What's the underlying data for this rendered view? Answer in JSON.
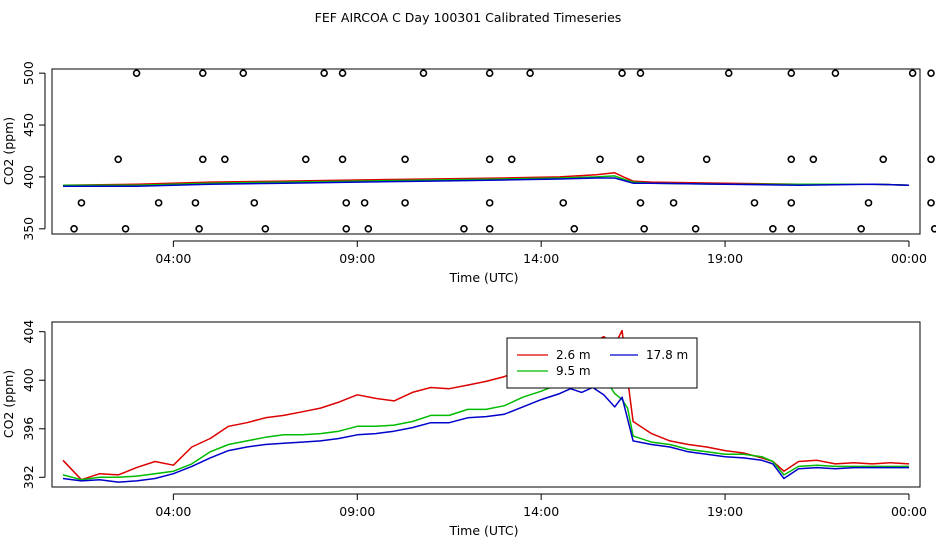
{
  "title": "FEF AIRCOA C  Day 100301  Calibrated Timeseries",
  "colors": {
    "red": "#dd0000",
    "green": "#00bb00",
    "blue": "#0000cc",
    "points": "#000000"
  },
  "chart_data": [
    {
      "type": "line",
      "xlabel": "Time (UTC)",
      "ylabel": "CO2 (ppm)",
      "xlim": [
        -0.3,
        23.3
      ],
      "ylim": [
        345,
        504
      ],
      "xticks": [
        3,
        8,
        13,
        18,
        23
      ],
      "xtick_labels": [
        "04:00",
        "09:00",
        "14:00",
        "19:00",
        "00:00"
      ],
      "yticks": [
        350,
        400,
        450,
        500
      ],
      "ytick_labels": [
        "350",
        "400",
        "450",
        "500"
      ],
      "grid": false,
      "scatter": {
        "name": "",
        "marker": "open-circle",
        "x": [
          2.0,
          3.8,
          4.9,
          7.1,
          7.6,
          9.8,
          11.6,
          12.7,
          15.2,
          15.7,
          18.1,
          19.8,
          21.0,
          23.1,
          23.6,
          1.5,
          3.8,
          4.4,
          6.6,
          7.6,
          9.3,
          11.6,
          12.2,
          14.6,
          15.7,
          17.5,
          19.8,
          20.4,
          22.3,
          23.6,
          0.3,
          1.7,
          3.7,
          5.5,
          7.7,
          8.3,
          10.9,
          11.6,
          13.9,
          15.8,
          17.2,
          19.3,
          19.8,
          21.7,
          23.7,
          0.5,
          2.6,
          3.6,
          5.2,
          7.7,
          8.2,
          9.3,
          11.6,
          13.6,
          15.7,
          16.6,
          18.8,
          19.8,
          21.9,
          23.6
        ],
        "y": [
          500,
          500,
          500,
          500,
          500,
          500,
          500,
          500,
          500,
          500,
          500,
          500,
          500,
          500,
          500,
          417,
          417,
          417,
          417,
          417,
          417,
          417,
          417,
          417,
          417,
          417,
          417,
          417,
          417,
          417,
          350,
          350,
          350,
          350,
          350,
          350,
          350,
          350,
          350,
          350,
          350,
          350,
          350,
          350,
          350,
          375,
          375,
          375,
          375,
          375,
          375,
          375,
          375,
          375,
          375,
          375,
          375,
          375,
          375,
          375
        ]
      },
      "series": [
        {
          "name": "",
          "color": "red",
          "x": [
            0,
            2,
            4,
            6,
            8,
            10,
            12,
            13.5,
            14.5,
            15,
            15.3,
            15.5,
            16,
            18,
            20,
            22,
            23
          ],
          "y": [
            392,
            393,
            395,
            396,
            397,
            398,
            399,
            400,
            402,
            404,
            399,
            396,
            395,
            394,
            393,
            393,
            392
          ]
        },
        {
          "name": "",
          "color": "green",
          "x": [
            0,
            2,
            4,
            6,
            8,
            10,
            12,
            13.5,
            14.5,
            15,
            15.3,
            15.5,
            16,
            18,
            20,
            22,
            23
          ],
          "y": [
            392,
            392,
            394,
            395,
            396,
            397,
            398,
            399,
            400,
            401,
            397,
            395,
            394,
            393,
            393,
            393,
            392
          ]
        },
        {
          "name": "",
          "color": "blue",
          "x": [
            0,
            2,
            4,
            6,
            8,
            10,
            12,
            13.5,
            14.5,
            15,
            15.3,
            15.5,
            16,
            18,
            20,
            22,
            23
          ],
          "y": [
            391,
            391,
            393,
            394,
            395,
            396,
            397,
            398,
            399,
            399,
            396,
            394,
            394,
            393,
            392,
            393,
            392
          ]
        }
      ]
    },
    {
      "type": "line",
      "xlabel": "Time (UTC)",
      "ylabel": "CO2 (ppm)",
      "xlim": [
        -0.3,
        23.3
      ],
      "ylim": [
        391.2,
        404.8
      ],
      "xticks": [
        3,
        8,
        13,
        18,
        23
      ],
      "xtick_labels": [
        "04:00",
        "09:00",
        "14:00",
        "19:00",
        "00:00"
      ],
      "yticks": [
        392,
        396,
        400,
        404
      ],
      "ytick_labels": [
        "392",
        "396",
        "400",
        "404"
      ],
      "grid": false,
      "legend": {
        "position": "top-right",
        "entries": [
          "2.6 m",
          "9.5 m",
          "17.8 m"
        ]
      },
      "series": [
        {
          "name": "2.6 m",
          "color": "red",
          "x": [
            0,
            0.5,
            1,
            1.5,
            2,
            2.5,
            3,
            3.5,
            4,
            4.5,
            5,
            5.5,
            6,
            6.5,
            7,
            7.5,
            8,
            8.5,
            9,
            9.5,
            10,
            10.5,
            11,
            11.5,
            12,
            12.5,
            13,
            13.5,
            13.8,
            14.1,
            14.4,
            14.7,
            15.0,
            15.2,
            15.35,
            15.5,
            16,
            16.5,
            17,
            17.5,
            18,
            18.5,
            19,
            19.3,
            19.6,
            20,
            20.5,
            21,
            21.5,
            22,
            22.5,
            23
          ],
          "y": [
            393.4,
            391.8,
            392.3,
            392.2,
            392.8,
            393.3,
            393.0,
            394.5,
            395.2,
            396.2,
            396.5,
            396.9,
            397.1,
            397.4,
            397.7,
            398.2,
            398.8,
            398.5,
            398.3,
            399.0,
            399.4,
            399.3,
            399.6,
            399.9,
            400.3,
            400.9,
            401.4,
            402.0,
            403.0,
            402.4,
            403.1,
            403.6,
            402.9,
            404.1,
            400.1,
            396.6,
            395.6,
            395.0,
            394.7,
            394.5,
            394.2,
            394.0,
            393.6,
            393.3,
            392.5,
            393.3,
            393.4,
            393.1,
            393.2,
            393.1,
            393.2,
            393.1
          ]
        },
        {
          "name": "9.5 m",
          "color": "green",
          "x": [
            0,
            0.5,
            1,
            1.5,
            2,
            2.5,
            3,
            3.5,
            4,
            4.5,
            5,
            5.5,
            6,
            6.5,
            7,
            7.5,
            8,
            8.5,
            9,
            9.5,
            10,
            10.5,
            11,
            11.5,
            12,
            12.5,
            13,
            13.5,
            13.8,
            14.1,
            14.4,
            14.7,
            15.0,
            15.2,
            15.35,
            15.5,
            16,
            16.5,
            17,
            17.5,
            18,
            18.5,
            19,
            19.3,
            19.6,
            20,
            20.5,
            21,
            21.5,
            22,
            22.5,
            23
          ],
          "y": [
            392.2,
            391.8,
            392.0,
            392.0,
            392.1,
            392.3,
            392.5,
            393.1,
            394.1,
            394.7,
            395.0,
            395.3,
            395.5,
            395.5,
            395.6,
            395.8,
            396.2,
            396.2,
            396.3,
            396.6,
            397.1,
            397.1,
            397.6,
            397.6,
            397.9,
            398.6,
            399.1,
            399.7,
            401.2,
            400.5,
            400.9,
            400.3,
            398.9,
            398.4,
            397.7,
            395.4,
            394.9,
            394.7,
            394.3,
            394.1,
            393.9,
            393.9,
            393.7,
            393.3,
            392.2,
            392.9,
            393.0,
            392.9,
            392.9,
            392.9,
            392.9,
            392.9
          ]
        },
        {
          "name": "17.8 m",
          "color": "blue",
          "x": [
            0,
            0.5,
            1,
            1.5,
            2,
            2.5,
            3,
            3.5,
            4,
            4.5,
            5,
            5.5,
            6,
            6.5,
            7,
            7.5,
            8,
            8.5,
            9,
            9.5,
            10,
            10.5,
            11,
            11.5,
            12,
            12.5,
            13,
            13.5,
            13.8,
            14.1,
            14.4,
            14.7,
            15.0,
            15.2,
            15.35,
            15.5,
            16,
            16.5,
            17,
            17.5,
            18,
            18.5,
            19,
            19.3,
            19.6,
            20,
            20.5,
            21,
            21.5,
            22,
            22.5,
            23
          ],
          "y": [
            391.9,
            391.7,
            391.8,
            391.6,
            391.7,
            391.9,
            392.3,
            392.9,
            393.6,
            394.2,
            394.5,
            394.7,
            394.8,
            394.9,
            395.0,
            395.2,
            395.5,
            395.6,
            395.8,
            396.1,
            396.5,
            396.5,
            396.9,
            397.0,
            397.2,
            397.8,
            398.4,
            398.9,
            399.3,
            399.0,
            399.4,
            398.8,
            397.8,
            398.6,
            396.8,
            395.0,
            394.7,
            394.5,
            394.1,
            393.9,
            393.7,
            393.6,
            393.4,
            393.1,
            391.9,
            392.7,
            392.8,
            392.7,
            392.8,
            392.8,
            392.8,
            392.8
          ]
        }
      ]
    }
  ]
}
